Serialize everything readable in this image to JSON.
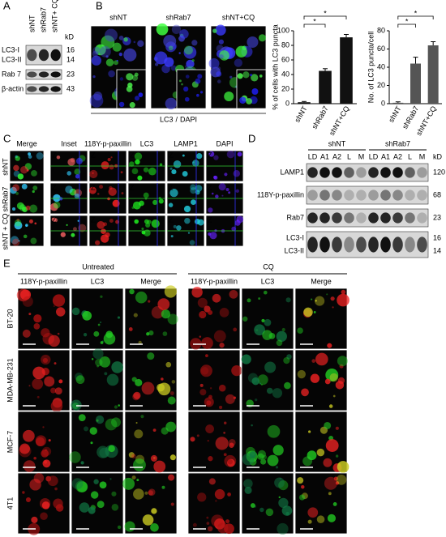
{
  "panel_labels": [
    "A",
    "B",
    "C",
    "D",
    "E"
  ],
  "blot_a": {
    "lanes": [
      "shNT",
      "shRab7",
      "shNT+ CQ"
    ],
    "kd_label": "kD",
    "bands": [
      {
        "names": [
          "LC3-I",
          "LC3-II"
        ],
        "kd": [
          16,
          14
        ]
      },
      {
        "names": [
          "Rab 7"
        ],
        "kd": [
          23
        ]
      },
      {
        "names": [
          "β-actin"
        ],
        "kd": [
          43
        ]
      }
    ]
  },
  "panel_b": {
    "image_labels": [
      "shNT",
      "shRab7",
      "shNT+CQ"
    ],
    "stain": [
      "LC3",
      "/",
      "DAPI"
    ]
  },
  "chart_data": [
    {
      "type": "bar",
      "y_label": "% of cells with LC3 puncta",
      "categories": [
        "shNT",
        "shRab7",
        "shNT+CQ"
      ],
      "values": [
        2,
        45,
        91
      ],
      "errors": [
        1,
        3,
        4
      ],
      "color": "#111111",
      "ylim": [
        0,
        100
      ],
      "yticks": [
        0,
        20,
        40,
        60,
        80,
        100
      ],
      "significance": [
        "*",
        "*"
      ]
    },
    {
      "type": "bar",
      "y_label": "No. of LC3 puncta/cell",
      "categories": [
        "shNT",
        "shRab7",
        "shNT+CQ"
      ],
      "values": [
        1,
        44,
        64
      ],
      "errors": [
        1,
        7,
        4
      ],
      "color": "#555555",
      "ylim": [
        0,
        80
      ],
      "yticks": [
        0,
        20,
        40,
        60,
        80
      ],
      "significance": [
        "*",
        "*"
      ]
    }
  ],
  "panel_c": {
    "columns": [
      "Merge",
      "Inset",
      "118Y-p-paxillin",
      "LC3",
      "LAMP1",
      "DAPI"
    ],
    "rows": [
      "shNT",
      "shRab7",
      "shNT + CQ"
    ],
    "z": "Z"
  },
  "panel_d": {
    "groups": [
      "shNT",
      "shRab7"
    ],
    "lanes": [
      "LD",
      "A1",
      "A2",
      "L",
      "M"
    ],
    "kd_label": "kD",
    "bands": [
      {
        "names": [
          "LAMP1"
        ],
        "kd": [
          120
        ]
      },
      {
        "names": [
          "118Y-p-paxillin"
        ],
        "kd": [
          68
        ]
      },
      {
        "names": [
          "Rab7"
        ],
        "kd": [
          23
        ]
      },
      {
        "names": [
          "LC3-I",
          "LC3-II"
        ],
        "kd": [
          16,
          14
        ]
      }
    ]
  },
  "panel_e": {
    "conditions": [
      "Untreated",
      "CQ"
    ],
    "channels": [
      "118Y-p-paxillin",
      "LC3",
      "Merge"
    ],
    "cell_lines": [
      "BT-20",
      "MDA-MB-231",
      "MCF-7",
      "4T1"
    ]
  }
}
